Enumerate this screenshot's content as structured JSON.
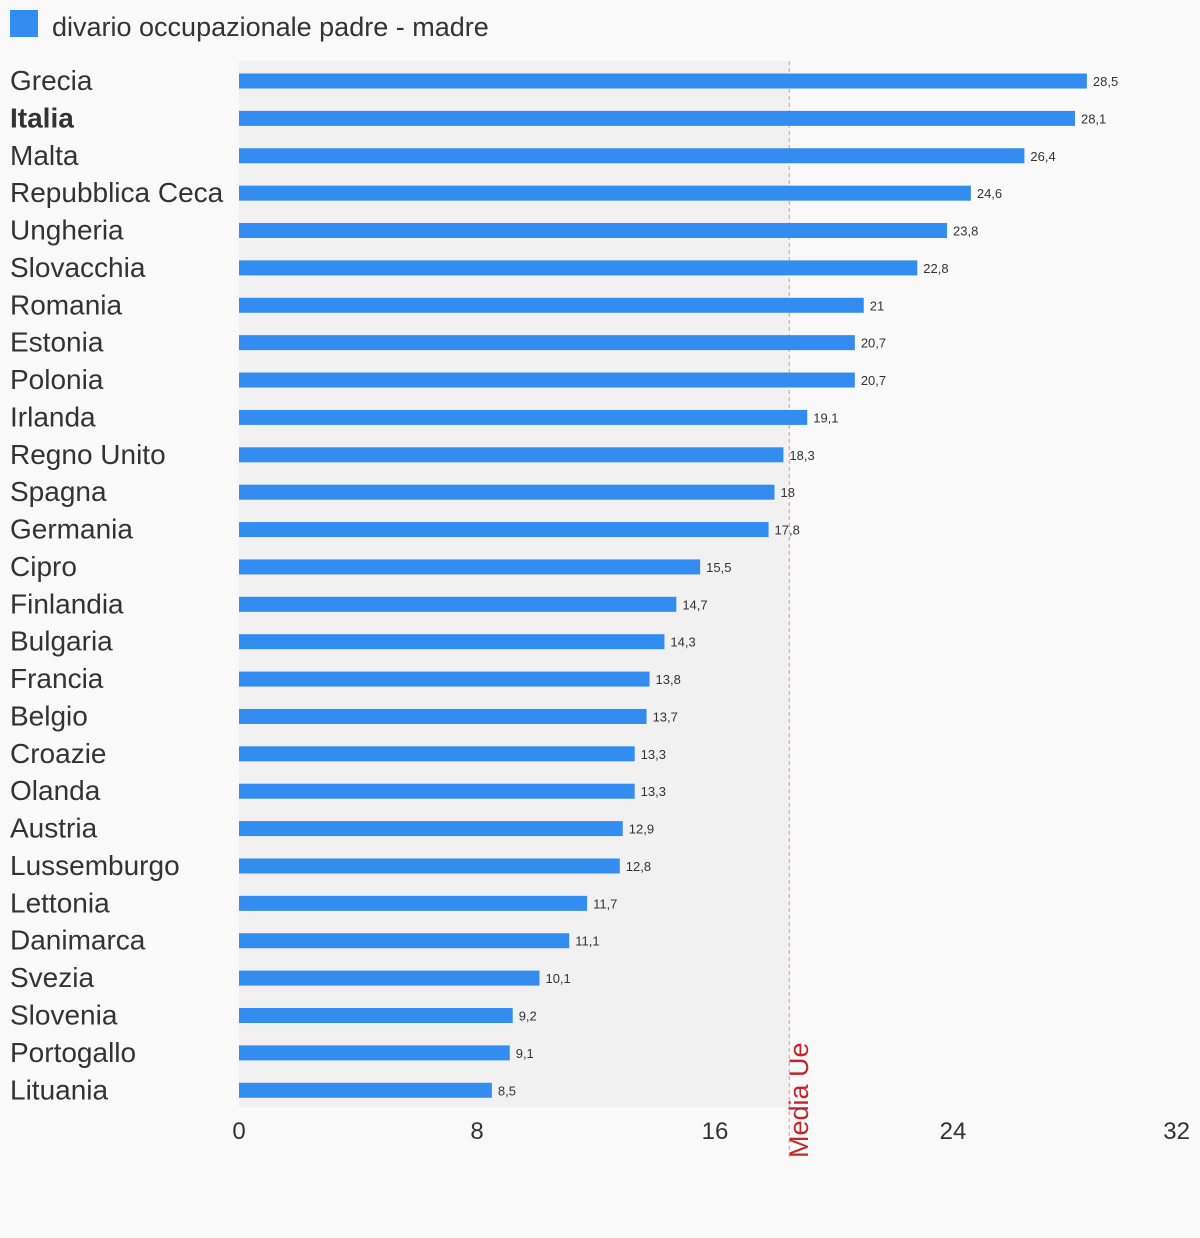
{
  "chart_data": {
    "type": "bar",
    "orientation": "horizontal",
    "legend": {
      "label": "divario occupazionale padre - madre",
      "color": "#338cf0",
      "position": "top-left"
    },
    "categories": [
      "Grecia",
      "Italia",
      "Malta",
      "Repubblica Ceca",
      "Ungheria",
      "Slovacchia",
      "Romania",
      "Estonia",
      "Polonia",
      "Irlanda",
      "Regno Unito",
      "Spagna",
      "Germania",
      "Cipro",
      "Finlandia",
      "Bulgaria",
      "Francia",
      "Belgio",
      "Croazie",
      "Olanda",
      "Austria",
      "Lussemburgo",
      "Lettonia",
      "Danimarca",
      "Svezia",
      "Slovenia",
      "Portogallo",
      "Lituania"
    ],
    "highlighted_category": "Italia",
    "values": [
      28.5,
      28.1,
      26.4,
      24.6,
      23.8,
      22.8,
      21,
      20.7,
      20.7,
      19.1,
      18.3,
      18,
      17.8,
      15.5,
      14.7,
      14.3,
      13.8,
      13.7,
      13.3,
      13.3,
      12.9,
      12.8,
      11.7,
      11.1,
      10.1,
      9.2,
      9.1,
      8.5
    ],
    "value_labels": [
      "28,5",
      "28,1",
      "26,4",
      "24,6",
      "23,8",
      "22,8",
      "21",
      "20,7",
      "20,7",
      "19,1",
      "18,3",
      "18",
      "17,8",
      "15,5",
      "14,7",
      "14,3",
      "13,8",
      "13,7",
      "13,3",
      "13,3",
      "12,9",
      "12,8",
      "11,7",
      "11,1",
      "10,1",
      "9,2",
      "9,1",
      "8,5"
    ],
    "xlim": [
      0,
      32
    ],
    "xticks": [
      0,
      8,
      16,
      24,
      32
    ],
    "xtick_labels": [
      "0",
      "8",
      "16",
      "24",
      "32"
    ],
    "reference_line": {
      "label": "Media Ue",
      "value": 18.5,
      "color": "#c0272d"
    },
    "shaded_band": {
      "from": 0,
      "to": 18.5,
      "color": "#f1f1f1"
    },
    "grid": false
  }
}
